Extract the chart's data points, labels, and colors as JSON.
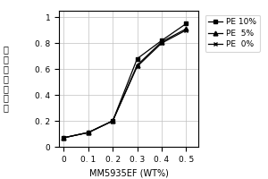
{
  "title": "",
  "xlabel": "MM5935EF (WT%)",
  "ylabel_chars": [
    "离",
    "燔",
    "体",
    "强",
    "度",
    "比",
    "较"
  ],
  "x": [
    0,
    0.1,
    0.2,
    0.3,
    0.4,
    0.5
  ],
  "series": [
    {
      "label": "PE 10%",
      "marker": "s",
      "y": [
        0.07,
        0.11,
        0.2,
        0.68,
        0.82,
        0.95
      ],
      "color": "#000000",
      "linestyle": "-"
    },
    {
      "label": "PE  5%",
      "marker": "^",
      "y": [
        0.07,
        0.11,
        0.2,
        0.63,
        0.81,
        0.91
      ],
      "color": "#000000",
      "linestyle": "-"
    },
    {
      "label": "PE  0%",
      "marker": "x",
      "y": [
        0.07,
        0.11,
        0.2,
        0.62,
        0.8,
        0.9
      ],
      "color": "#000000",
      "linestyle": "-"
    }
  ],
  "xlim": [
    -0.02,
    0.55
  ],
  "ylim": [
    0,
    1.05
  ],
  "xticks": [
    0,
    0.1,
    0.2,
    0.3,
    0.4,
    0.5
  ],
  "yticks": [
    0,
    0.2,
    0.4,
    0.6,
    0.8,
    1.0
  ],
  "xtick_labels": [
    "0",
    "0. 1",
    "0. 2",
    "0. 3",
    "0. 4",
    "0. 5"
  ],
  "ytick_labels": [
    "0",
    "0. 2",
    "0. 4",
    "0. 6",
    "0. 8",
    "1"
  ],
  "grid": true,
  "background_color": "#ffffff",
  "legend_fontsize": 6.5,
  "tick_fontsize": 6.5,
  "label_fontsize": 7,
  "ylabel_fontsize": 7
}
